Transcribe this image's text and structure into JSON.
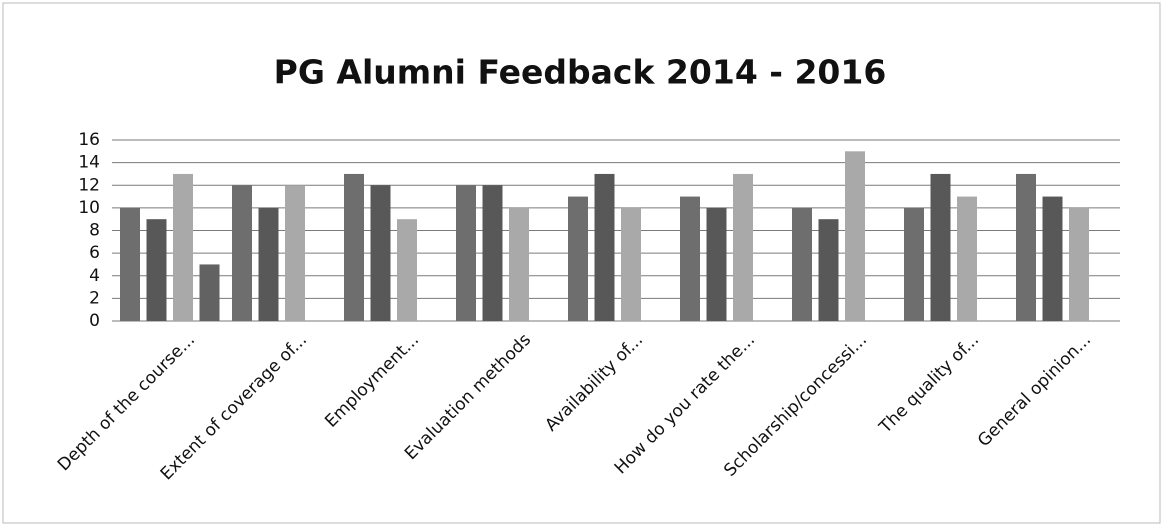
{
  "chart_data": {
    "type": "bar",
    "title": "PG Alumni Feedback 2014 - 2016",
    "categories": [
      "Depth of the course...",
      "Extent of coverage of...",
      "Employment...",
      "Evaluation methods",
      "Availability of...",
      "How do you rate the...",
      "Scholarship/concessi...",
      "The quality of...",
      "General opinion..."
    ],
    "series": [
      {
        "color": "#6e6e6e",
        "values": [
          10,
          12,
          13,
          12,
          11,
          11,
          10,
          10,
          13
        ]
      },
      {
        "color": "#585858",
        "values": [
          9,
          10,
          12,
          12,
          13,
          10,
          9,
          13,
          11
        ]
      },
      {
        "color": "#a9a9a9",
        "values": [
          13,
          12,
          9,
          10,
          10,
          13,
          15,
          11,
          10
        ]
      },
      {
        "color": "#626262",
        "values": [
          5,
          null,
          null,
          null,
          null,
          null,
          null,
          null,
          null
        ]
      }
    ],
    "ylim": [
      0,
      16
    ],
    "yticks": [
      0,
      2,
      4,
      6,
      8,
      10,
      12,
      14,
      16
    ],
    "grid": true
  }
}
